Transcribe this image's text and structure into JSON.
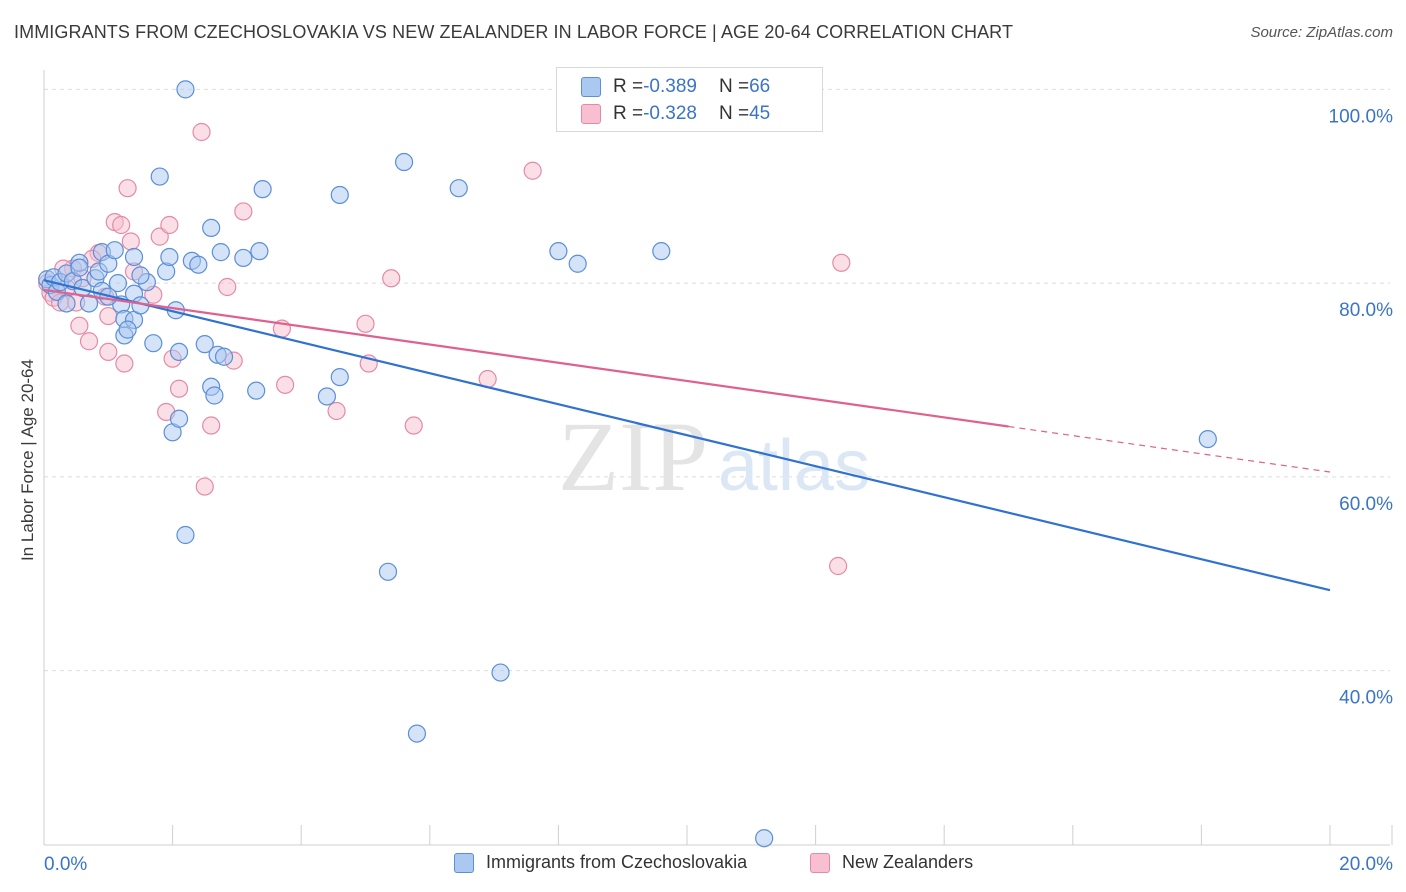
{
  "header": {
    "title": "IMMIGRANTS FROM CZECHOSLOVAKIA VS NEW ZEALANDER IN LABOR FORCE | AGE 20-64 CORRELATION CHART",
    "source": "Source: ZipAtlas.com"
  },
  "legend": {
    "rows": [
      {
        "r_label": "R = ",
        "r_value": "-0.389",
        "n_label": "N = ",
        "n_value": "66"
      },
      {
        "r_label": "R = ",
        "r_value": "-0.328",
        "n_label": "N = ",
        "n_value": "45"
      }
    ]
  },
  "watermark": {
    "zip": "ZIP",
    "atlas": "atlas"
  },
  "colors": {
    "blue_fill": "#aac8f0",
    "blue_stroke": "#5b8fd8",
    "blue_line": "#2f72d0",
    "pink_fill": "#f7bfd0",
    "pink_stroke": "#e48aa8",
    "pink_line": "#e0608e",
    "tick_label": "#3a74c9",
    "grid": "#dddddd"
  },
  "chart_data": {
    "type": "scatter",
    "title": "IMMIGRANTS FROM CZECHOSLOVAKIA VS NEW ZEALANDER IN LABOR FORCE | AGE 20-64 CORRELATION CHART",
    "xlabel": "",
    "ylabel": "In Labor Force | Age 20-64",
    "xlim": [
      0,
      20
    ],
    "ylim": [
      22,
      102
    ],
    "x_tick_labels": [
      "0.0%",
      "20.0%"
    ],
    "y_ticks": [
      40,
      60,
      80,
      100
    ],
    "y_tick_labels": [
      "40.0%",
      "60.0%",
      "80.0%",
      "100.0%"
    ],
    "series": [
      {
        "name": "Immigrants from Czechoslovakia",
        "color": "blue",
        "trend": {
          "x": [
            0,
            20
          ],
          "y": [
            80.3,
            48.3
          ],
          "dash_from": null
        },
        "points": [
          [
            0.05,
            80.4
          ],
          [
            0.1,
            79.8
          ],
          [
            0.15,
            80.6
          ],
          [
            0.2,
            79.1
          ],
          [
            0.25,
            80.1
          ],
          [
            0.35,
            77.9
          ],
          [
            0.35,
            81.0
          ],
          [
            0.45,
            80.2
          ],
          [
            0.55,
            82.1
          ],
          [
            0.6,
            79.5
          ],
          [
            0.7,
            77.9
          ],
          [
            0.8,
            80.5
          ],
          [
            0.85,
            81.2
          ],
          [
            0.9,
            79.2
          ],
          [
            0.9,
            83.2
          ],
          [
            1.0,
            82.0
          ],
          [
            1.1,
            83.4
          ],
          [
            1.15,
            80.0
          ],
          [
            1.2,
            77.8
          ],
          [
            1.25,
            74.6
          ],
          [
            1.25,
            76.3
          ],
          [
            1.4,
            78.9
          ],
          [
            1.4,
            76.2
          ],
          [
            1.4,
            82.7
          ],
          [
            1.5,
            77.7
          ],
          [
            1.6,
            80.1
          ],
          [
            1.7,
            73.8
          ],
          [
            1.8,
            91.0
          ],
          [
            1.9,
            81.2
          ],
          [
            1.95,
            82.7
          ],
          [
            2.05,
            77.2
          ],
          [
            2.1,
            72.9
          ],
          [
            2.2,
            100.0
          ],
          [
            2.3,
            82.3
          ],
          [
            2.4,
            81.9
          ],
          [
            2.5,
            73.7
          ],
          [
            2.6,
            85.7
          ],
          [
            2.7,
            72.6
          ],
          [
            2.75,
            83.2
          ],
          [
            2.2,
            54.0
          ],
          [
            2.6,
            69.3
          ],
          [
            2.65,
            68.4
          ],
          [
            2.8,
            72.4
          ],
          [
            3.1,
            82.6
          ],
          [
            3.35,
            83.3
          ],
          [
            3.4,
            89.7
          ],
          [
            2.0,
            64.6
          ],
          [
            2.1,
            66.0
          ],
          [
            3.3,
            68.9
          ],
          [
            4.4,
            68.3
          ],
          [
            4.6,
            70.3
          ],
          [
            4.6,
            89.1
          ],
          [
            5.35,
            50.2
          ],
          [
            5.6,
            92.5
          ],
          [
            5.8,
            33.5
          ],
          [
            6.45,
            89.8
          ],
          [
            7.1,
            39.8
          ],
          [
            8.0,
            83.3
          ],
          [
            8.3,
            82.0
          ],
          [
            9.6,
            83.3
          ],
          [
            11.2,
            22.7
          ],
          [
            18.1,
            63.9
          ],
          [
            1.3,
            75.2
          ],
          [
            0.55,
            81.6
          ],
          [
            1.0,
            78.6
          ],
          [
            1.5,
            80.8
          ]
        ]
      },
      {
        "name": "New Zealanders",
        "color": "pink",
        "trend": {
          "x": [
            0,
            20
          ],
          "y": [
            79.3,
            60.5
          ],
          "dash_from": 15.0
        },
        "points": [
          [
            0.05,
            80.0
          ],
          [
            0.1,
            79.0
          ],
          [
            0.15,
            78.5
          ],
          [
            0.25,
            78.0
          ],
          [
            0.35,
            79.5
          ],
          [
            0.45,
            81.5
          ],
          [
            0.5,
            78.0
          ],
          [
            0.55,
            75.6
          ],
          [
            0.6,
            80.5
          ],
          [
            0.7,
            74.0
          ],
          [
            0.85,
            83.1
          ],
          [
            0.95,
            78.6
          ],
          [
            1.0,
            72.9
          ],
          [
            1.0,
            76.6
          ],
          [
            1.1,
            86.3
          ],
          [
            1.2,
            86.0
          ],
          [
            1.25,
            71.7
          ],
          [
            1.3,
            89.8
          ],
          [
            1.35,
            84.3
          ],
          [
            1.4,
            81.2
          ],
          [
            1.7,
            78.8
          ],
          [
            1.8,
            84.8
          ],
          [
            1.9,
            66.7
          ],
          [
            1.95,
            86.0
          ],
          [
            2.0,
            72.2
          ],
          [
            2.1,
            69.1
          ],
          [
            2.45,
            95.6
          ],
          [
            2.5,
            59.0
          ],
          [
            2.6,
            65.3
          ],
          [
            2.85,
            79.6
          ],
          [
            2.95,
            72.0
          ],
          [
            3.1,
            87.4
          ],
          [
            3.7,
            75.3
          ],
          [
            3.75,
            69.5
          ],
          [
            4.55,
            66.8
          ],
          [
            5.0,
            75.8
          ],
          [
            5.05,
            71.7
          ],
          [
            5.4,
            80.5
          ],
          [
            5.75,
            65.3
          ],
          [
            6.9,
            70.1
          ],
          [
            7.6,
            91.6
          ],
          [
            12.35,
            50.8
          ],
          [
            12.4,
            82.1
          ],
          [
            0.3,
            81.5
          ],
          [
            0.75,
            82.5
          ]
        ]
      }
    ],
    "legend_position": "top-center",
    "grid": true
  },
  "bottom_legend": {
    "items": [
      "Immigrants from Czechoslovakia",
      "New Zealanders"
    ]
  }
}
